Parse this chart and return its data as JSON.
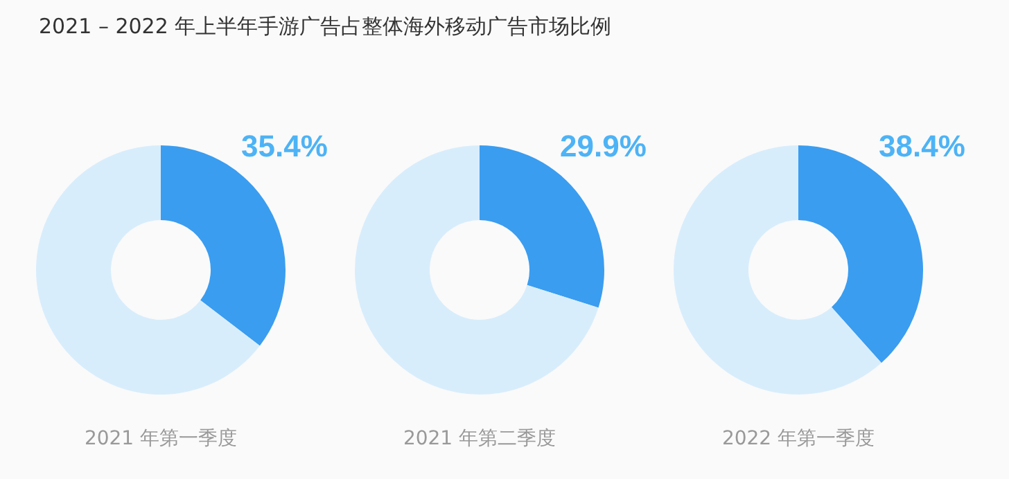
{
  "chart_data": [
    {
      "type": "donut",
      "title": "2021 – 2022 年上半年手游广告占整体海外移动广告市场比例",
      "xlabel": "2021 年第一季度",
      "categories": [
        null,
        null
      ],
      "values": [
        35.4,
        64.6
      ],
      "value_labels": [
        "35.4%",
        null
      ],
      "colors": [
        "#3a9df0",
        "#d8edfc"
      ],
      "legend": false
    },
    {
      "type": "donut",
      "xlabel": "2021 年第二季度",
      "categories": [
        null,
        null
      ],
      "values": [
        29.9,
        70.1
      ],
      "value_labels": [
        "29.9%",
        null
      ],
      "colors": [
        "#3a9df0",
        "#d8edfc"
      ],
      "legend": false
    },
    {
      "type": "donut",
      "xlabel": "2022 年第一季度",
      "categories": [
        null,
        null
      ],
      "values": [
        38.4,
        61.6
      ],
      "value_labels": [
        "38.4%",
        null
      ],
      "colors": [
        "#3a9df0",
        "#d8edfc"
      ],
      "legend": false
    }
  ]
}
